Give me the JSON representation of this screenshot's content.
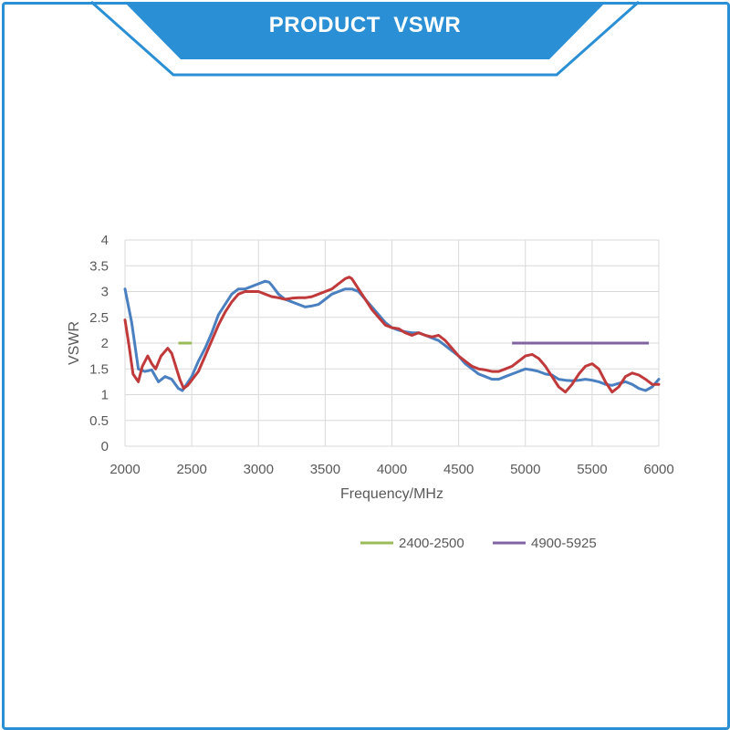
{
  "banner": {
    "title": "PRODUCT  VSWR",
    "color": "#2a8fd4"
  },
  "chart_data": {
    "type": "line",
    "title": "",
    "xlabel": "Frequency/MHz",
    "ylabel": "VSWR",
    "xlim": [
      2000,
      6000
    ],
    "ylim": [
      0,
      4
    ],
    "x_ticks": [
      "2000",
      "2500",
      "3000",
      "3500",
      "4000",
      "4500",
      "5000",
      "5500",
      "6000"
    ],
    "y_ticks": [
      "0",
      "0.5",
      "1",
      "1.5",
      "2",
      "2.5",
      "3",
      "3.5",
      "4"
    ],
    "grid": true,
    "legend_position": "bottom-right",
    "series": [
      {
        "color": "#4a7fc0",
        "x": [
          2000,
          2050,
          2100,
          2150,
          2200,
          2250,
          2300,
          2350,
          2400,
          2430,
          2500,
          2550,
          2600,
          2650,
          2700,
          2750,
          2800,
          2850,
          2900,
          2950,
          3000,
          3050,
          3080,
          3100,
          3150,
          3200,
          3250,
          3300,
          3350,
          3400,
          3450,
          3500,
          3550,
          3600,
          3650,
          3700,
          3750,
          3800,
          3850,
          3900,
          3950,
          4000,
          4050,
          4100,
          4150,
          4200,
          4250,
          4300,
          4350,
          4400,
          4450,
          4500,
          4550,
          4600,
          4650,
          4700,
          4750,
          4800,
          4850,
          4900,
          4950,
          5000,
          5050,
          5100,
          5150,
          5200,
          5250,
          5300,
          5350,
          5400,
          5450,
          5500,
          5550,
          5600,
          5650,
          5700,
          5750,
          5800,
          5850,
          5900,
          5950,
          6000
        ],
        "y": [
          3.05,
          2.4,
          1.5,
          1.45,
          1.48,
          1.25,
          1.35,
          1.3,
          1.12,
          1.08,
          1.35,
          1.65,
          1.9,
          2.2,
          2.55,
          2.75,
          2.95,
          3.05,
          3.05,
          3.1,
          3.15,
          3.2,
          3.18,
          3.12,
          2.95,
          2.85,
          2.8,
          2.75,
          2.7,
          2.72,
          2.75,
          2.85,
          2.95,
          3.0,
          3.05,
          3.05,
          3.0,
          2.85,
          2.7,
          2.55,
          2.4,
          2.3,
          2.25,
          2.22,
          2.2,
          2.2,
          2.15,
          2.1,
          2.05,
          1.95,
          1.85,
          1.75,
          1.6,
          1.5,
          1.4,
          1.35,
          1.3,
          1.3,
          1.35,
          1.4,
          1.45,
          1.5,
          1.48,
          1.45,
          1.4,
          1.38,
          1.3,
          1.28,
          1.27,
          1.28,
          1.3,
          1.28,
          1.25,
          1.2,
          1.18,
          1.22,
          1.25,
          1.2,
          1.12,
          1.08,
          1.15,
          1.3
        ]
      },
      {
        "color": "#c0393b",
        "x": [
          2000,
          2030,
          2060,
          2100,
          2130,
          2170,
          2200,
          2230,
          2270,
          2320,
          2350,
          2380,
          2410,
          2440,
          2470,
          2500,
          2550,
          2600,
          2650,
          2700,
          2750,
          2800,
          2850,
          2900,
          2950,
          3000,
          3050,
          3100,
          3150,
          3200,
          3250,
          3300,
          3350,
          3400,
          3450,
          3500,
          3550,
          3600,
          3650,
          3680,
          3700,
          3750,
          3800,
          3850,
          3900,
          3950,
          4000,
          4050,
          4100,
          4150,
          4200,
          4250,
          4300,
          4350,
          4400,
          4450,
          4500,
          4550,
          4600,
          4650,
          4700,
          4750,
          4800,
          4850,
          4900,
          4950,
          5000,
          5050,
          5100,
          5150,
          5200,
          5250,
          5300,
          5350,
          5400,
          5450,
          5500,
          5550,
          5600,
          5650,
          5700,
          5750,
          5800,
          5850,
          5900,
          5950,
          6000
        ],
        "y": [
          2.45,
          1.95,
          1.4,
          1.25,
          1.55,
          1.75,
          1.6,
          1.5,
          1.75,
          1.9,
          1.8,
          1.55,
          1.3,
          1.12,
          1.18,
          1.28,
          1.45,
          1.75,
          2.05,
          2.35,
          2.6,
          2.8,
          2.95,
          3.0,
          3.0,
          3.0,
          2.95,
          2.9,
          2.88,
          2.85,
          2.87,
          2.88,
          2.88,
          2.9,
          2.95,
          3.0,
          3.05,
          3.15,
          3.25,
          3.28,
          3.25,
          3.05,
          2.85,
          2.65,
          2.5,
          2.35,
          2.3,
          2.28,
          2.2,
          2.15,
          2.2,
          2.15,
          2.12,
          2.15,
          2.05,
          1.9,
          1.75,
          1.65,
          1.55,
          1.5,
          1.48,
          1.45,
          1.45,
          1.5,
          1.55,
          1.65,
          1.75,
          1.78,
          1.7,
          1.55,
          1.35,
          1.15,
          1.05,
          1.2,
          1.4,
          1.55,
          1.6,
          1.5,
          1.25,
          1.05,
          1.15,
          1.35,
          1.42,
          1.38,
          1.3,
          1.2,
          1.2
        ]
      }
    ],
    "reference_lines": [
      {
        "name": "2400-2500",
        "x": [
          2400,
          2500
        ],
        "y": 2,
        "color": "#9bbb59"
      },
      {
        "name": "4900-5925",
        "x": [
          4900,
          5925
        ],
        "y": 2,
        "color": "#8064a2"
      }
    ]
  }
}
